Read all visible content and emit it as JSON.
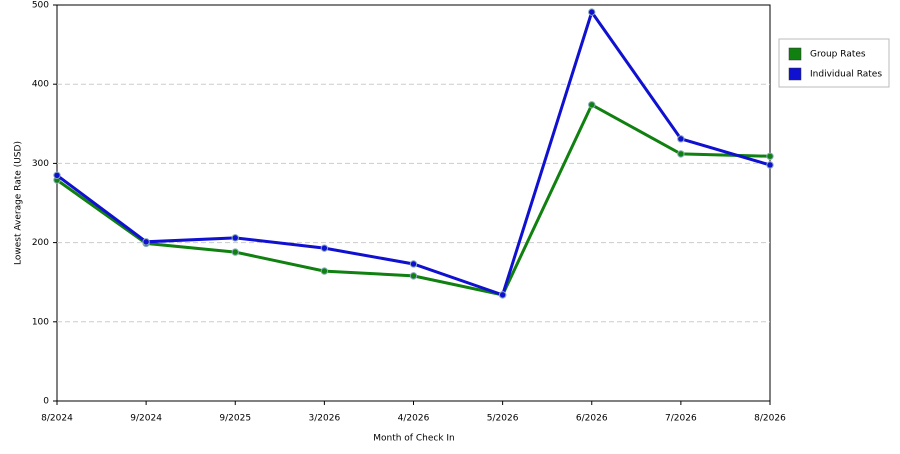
{
  "chart_data": {
    "type": "line",
    "x_label": "Month of Check In",
    "y_label": "Lowest Average Rate (USD)",
    "categories": [
      "8/2024",
      "9/2024",
      "9/2025",
      "3/2026",
      "4/2026",
      "5/2026",
      "6/2026",
      "7/2026",
      "8/2026"
    ],
    "series": [
      {
        "name": "Group Rates",
        "color": "#108010",
        "values": [
          279,
          199,
          188,
          164,
          158,
          134,
          374,
          312,
          309
        ]
      },
      {
        "name": "Individual Rates",
        "color": "#1010d0",
        "values": [
          285,
          201,
          206,
          193,
          173,
          134,
          491,
          331,
          298
        ]
      }
    ],
    "ylim": [
      0,
      500
    ],
    "yticks": [
      0,
      100,
      200,
      300,
      400,
      500
    ],
    "grid": true,
    "legend": "right"
  }
}
